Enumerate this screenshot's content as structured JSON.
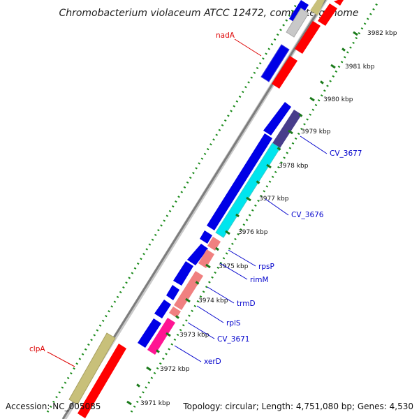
{
  "title": "Chromobacterium violaceum ATCC 12472, complete genome",
  "footer": {
    "accession": "Accession: NC_005085",
    "topology": "Topology: circular; Length: 4,751,080 bp; Genes: 4,530"
  },
  "colors": {
    "backbone": "#808080",
    "gc_dots": "#1a8a1a",
    "ticks": "#1a7a1a",
    "label_line_blue": "#0000cc",
    "label_line_red": "#dd0000"
  },
  "tick_labels": [
    "3971 kbp",
    "3972 kbp",
    "3973 kbp",
    "3974 kbp",
    "3975 kbp",
    "3976 kbp",
    "3977 kbp",
    "3978 kbp",
    "3979 kbp",
    "3980 kbp",
    "3981 kbp",
    "3982 kbp"
  ],
  "gene_labels": [
    {
      "text": "nadA",
      "color": "#dd0000"
    },
    {
      "text": "CV_3677",
      "color": "#0000cc"
    },
    {
      "text": "CV_3676",
      "color": "#0000cc"
    },
    {
      "text": "rpsP",
      "color": "#0000cc"
    },
    {
      "text": "rimM",
      "color": "#0000cc"
    },
    {
      "text": "trmD",
      "color": "#0000cc"
    },
    {
      "text": "rplS",
      "color": "#0000cc"
    },
    {
      "text": "CV_3671",
      "color": "#0000cc"
    },
    {
      "text": "xerD",
      "color": "#0000cc"
    },
    {
      "text": "clpA",
      "color": "#dd0000"
    }
  ]
}
